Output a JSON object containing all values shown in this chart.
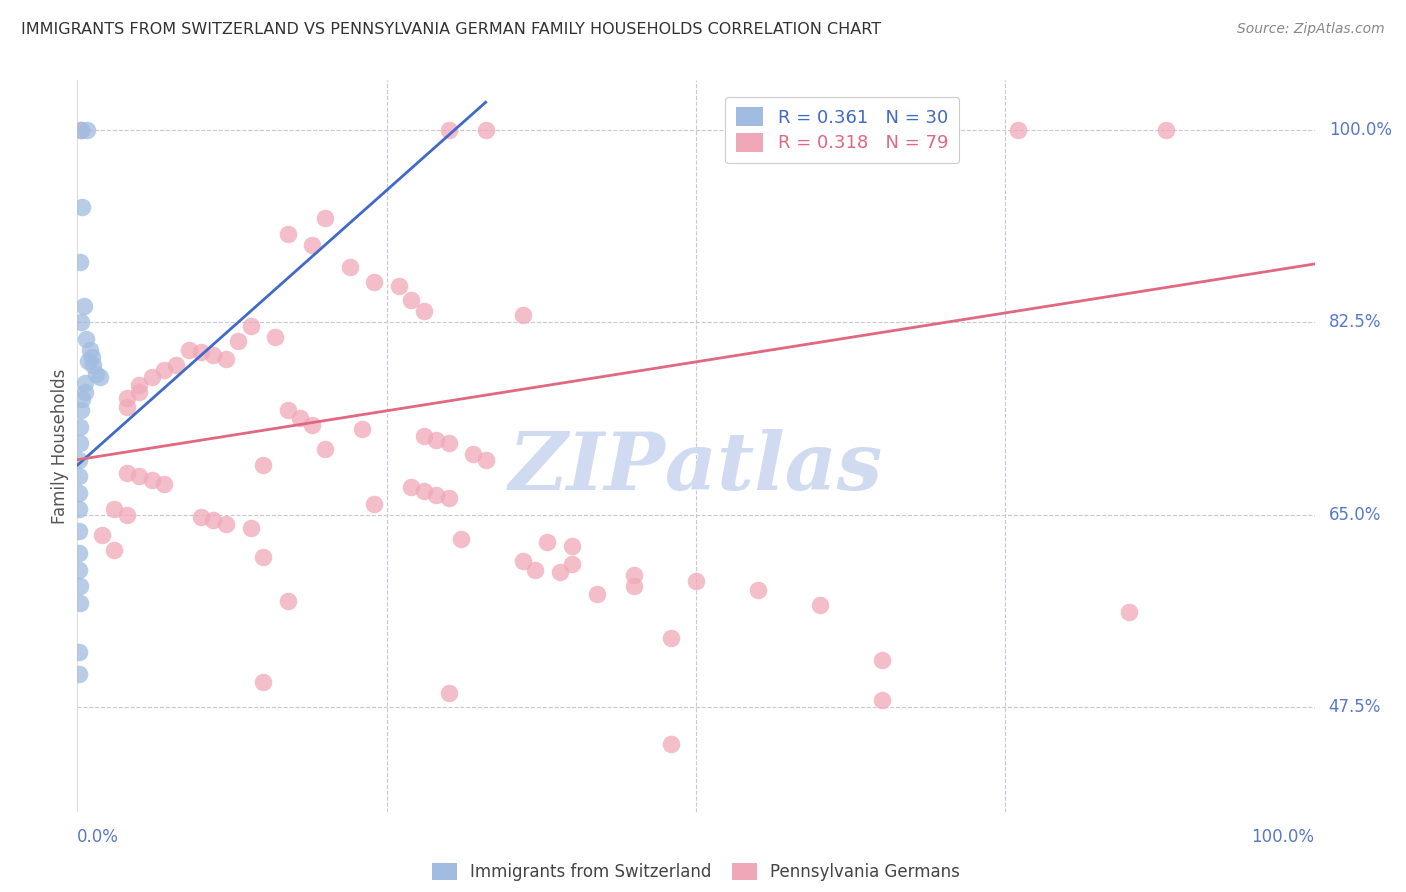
{
  "title": "IMMIGRANTS FROM SWITZERLAND VS PENNSYLVANIA GERMAN FAMILY HOUSEHOLDS CORRELATION CHART",
  "source": "Source: ZipAtlas.com",
  "ylabel": "Family Households",
  "ytick_labels": [
    "100.0%",
    "82.5%",
    "65.0%",
    "47.5%"
  ],
  "ytick_values": [
    1.0,
    0.825,
    0.65,
    0.475
  ],
  "xlim": [
    0.0,
    1.0
  ],
  "ylim": [
    0.38,
    1.045
  ],
  "legend_blue_r": "R = 0.361",
  "legend_blue_n": "N = 30",
  "legend_pink_r": "R = 0.318",
  "legend_pink_n": "N = 79",
  "blue_color": "#a0bce0",
  "pink_color": "#f0a8b8",
  "blue_line_color": "#4169c8",
  "pink_line_color": "#e06880",
  "grid_color": "#c8c8d8",
  "title_color": "#333333",
  "axis_label_color": "#5878c8",
  "watermark_color": "#d0daf0",
  "blue_scatter": [
    [
      0.003,
      1.0
    ],
    [
      0.008,
      1.0
    ],
    [
      0.004,
      0.93
    ],
    [
      0.002,
      0.88
    ],
    [
      0.005,
      0.84
    ],
    [
      0.003,
      0.825
    ],
    [
      0.007,
      0.81
    ],
    [
      0.01,
      0.8
    ],
    [
      0.012,
      0.793
    ],
    [
      0.009,
      0.79
    ],
    [
      0.013,
      0.786
    ],
    [
      0.015,
      0.778
    ],
    [
      0.018,
      0.775
    ],
    [
      0.006,
      0.77
    ],
    [
      0.006,
      0.762
    ],
    [
      0.004,
      0.755
    ],
    [
      0.003,
      0.745
    ],
    [
      0.002,
      0.73
    ],
    [
      0.002,
      0.715
    ],
    [
      0.001,
      0.7
    ],
    [
      0.001,
      0.685
    ],
    [
      0.001,
      0.67
    ],
    [
      0.001,
      0.655
    ],
    [
      0.001,
      0.635
    ],
    [
      0.001,
      0.615
    ],
    [
      0.001,
      0.6
    ],
    [
      0.002,
      0.585
    ],
    [
      0.002,
      0.57
    ],
    [
      0.001,
      0.525
    ],
    [
      0.001,
      0.505
    ]
  ],
  "pink_scatter": [
    [
      0.003,
      1.0
    ],
    [
      0.3,
      1.0
    ],
    [
      0.33,
      1.0
    ],
    [
      0.7,
      1.0
    ],
    [
      0.76,
      1.0
    ],
    [
      0.88,
      1.0
    ],
    [
      0.2,
      0.92
    ],
    [
      0.17,
      0.905
    ],
    [
      0.19,
      0.895
    ],
    [
      0.22,
      0.875
    ],
    [
      0.24,
      0.862
    ],
    [
      0.26,
      0.858
    ],
    [
      0.27,
      0.845
    ],
    [
      0.28,
      0.835
    ],
    [
      0.36,
      0.832
    ],
    [
      0.14,
      0.822
    ],
    [
      0.16,
      0.812
    ],
    [
      0.13,
      0.808
    ],
    [
      0.09,
      0.8
    ],
    [
      0.1,
      0.798
    ],
    [
      0.11,
      0.795
    ],
    [
      0.12,
      0.792
    ],
    [
      0.08,
      0.786
    ],
    [
      0.07,
      0.782
    ],
    [
      0.06,
      0.775
    ],
    [
      0.05,
      0.768
    ],
    [
      0.05,
      0.762
    ],
    [
      0.04,
      0.756
    ],
    [
      0.04,
      0.748
    ],
    [
      0.17,
      0.745
    ],
    [
      0.18,
      0.738
    ],
    [
      0.19,
      0.732
    ],
    [
      0.23,
      0.728
    ],
    [
      0.28,
      0.722
    ],
    [
      0.29,
      0.718
    ],
    [
      0.3,
      0.715
    ],
    [
      0.2,
      0.71
    ],
    [
      0.32,
      0.705
    ],
    [
      0.33,
      0.7
    ],
    [
      0.15,
      0.695
    ],
    [
      0.04,
      0.688
    ],
    [
      0.05,
      0.685
    ],
    [
      0.06,
      0.682
    ],
    [
      0.07,
      0.678
    ],
    [
      0.27,
      0.675
    ],
    [
      0.28,
      0.672
    ],
    [
      0.29,
      0.668
    ],
    [
      0.3,
      0.665
    ],
    [
      0.24,
      0.66
    ],
    [
      0.03,
      0.655
    ],
    [
      0.04,
      0.65
    ],
    [
      0.1,
      0.648
    ],
    [
      0.11,
      0.645
    ],
    [
      0.12,
      0.642
    ],
    [
      0.14,
      0.638
    ],
    [
      0.02,
      0.632
    ],
    [
      0.31,
      0.628
    ],
    [
      0.38,
      0.625
    ],
    [
      0.4,
      0.622
    ],
    [
      0.03,
      0.618
    ],
    [
      0.15,
      0.612
    ],
    [
      0.36,
      0.608
    ],
    [
      0.4,
      0.605
    ],
    [
      0.37,
      0.6
    ],
    [
      0.39,
      0.598
    ],
    [
      0.45,
      0.595
    ],
    [
      0.5,
      0.59
    ],
    [
      0.45,
      0.585
    ],
    [
      0.55,
      0.582
    ],
    [
      0.42,
      0.578
    ],
    [
      0.17,
      0.572
    ],
    [
      0.6,
      0.568
    ],
    [
      0.85,
      0.562
    ],
    [
      0.48,
      0.538
    ],
    [
      0.65,
      0.518
    ],
    [
      0.15,
      0.498
    ],
    [
      0.3,
      0.488
    ],
    [
      0.48,
      0.442
    ],
    [
      0.65,
      0.482
    ]
  ],
  "blue_line_x": [
    0.0,
    0.33
  ],
  "blue_line_y": [
    0.695,
    1.025
  ],
  "pink_line_x": [
    0.0,
    1.0
  ],
  "pink_line_y": [
    0.7,
    0.878
  ]
}
